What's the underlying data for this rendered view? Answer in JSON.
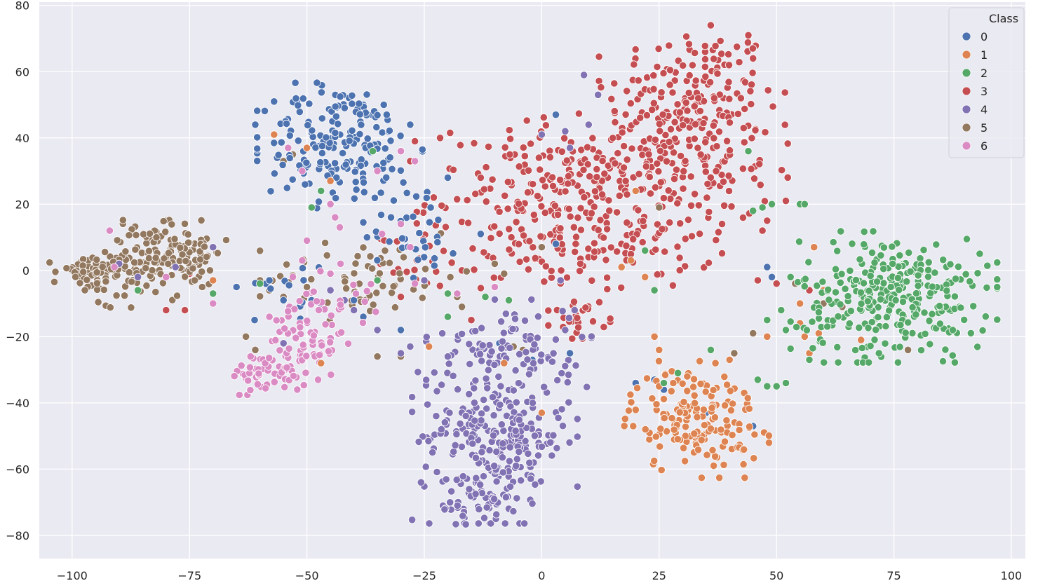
{
  "chart_data": {
    "type": "scatter",
    "title": "",
    "xlabel": "",
    "ylabel": "",
    "xlim": [
      -107,
      103
    ],
    "ylim": [
      -87,
      81
    ],
    "xticks": [
      -100,
      -75,
      -50,
      -25,
      0,
      25,
      50,
      75,
      100
    ],
    "yticks": [
      -80,
      -60,
      -40,
      -20,
      0,
      20,
      40,
      60,
      80
    ],
    "grid": true,
    "legend": {
      "title": "Class",
      "placement": "top-right"
    },
    "series": [
      {
        "name": "0",
        "color": "#4c72b0",
        "clusters": [
          {
            "cx": -43,
            "cy": 38,
            "sx": 8,
            "sy": 9,
            "n": 180
          },
          {
            "cx": -27,
            "cy": 14,
            "sx": 5,
            "sy": 8,
            "n": 35
          },
          {
            "cx": -53,
            "cy": -4,
            "sx": 4,
            "sy": 5,
            "n": 12
          }
        ],
        "points": [
          [
            -61,
            44
          ],
          [
            -57,
            51
          ],
          [
            -33,
            47
          ],
          [
            -28,
            44
          ],
          [
            -20,
            28
          ],
          [
            -13,
            11
          ],
          [
            3,
            47
          ],
          [
            6,
            -25
          ],
          [
            3,
            8
          ],
          [
            -9,
            -22
          ],
          [
            20,
            -34
          ],
          [
            24,
            -33
          ],
          [
            26,
            -36
          ],
          [
            35,
            -43
          ],
          [
            48,
            1
          ],
          [
            49,
            -2
          ],
          [
            45,
            -47
          ],
          [
            -65,
            -5
          ],
          [
            -58,
            -3
          ],
          [
            -49,
            -9
          ],
          [
            -2,
            -27
          ],
          [
            -40,
            -9
          ],
          [
            -38,
            -14
          ],
          [
            -30,
            -18
          ],
          [
            -55,
            -9
          ]
        ]
      },
      {
        "name": "1",
        "color": "#dd8452",
        "clusters": [
          {
            "cx": 33,
            "cy": -45,
            "sx": 7,
            "sy": 8,
            "n": 160
          }
        ],
        "points": [
          [
            -57,
            41
          ],
          [
            -50,
            37
          ],
          [
            -45,
            27
          ],
          [
            20,
            24
          ],
          [
            17,
            1
          ],
          [
            19,
            3
          ],
          [
            22,
            -2
          ],
          [
            24,
            -20
          ],
          [
            25,
            -24
          ],
          [
            25,
            -35
          ],
          [
            28,
            -34
          ],
          [
            31,
            -32
          ],
          [
            37,
            -28
          ],
          [
            40,
            -27
          ],
          [
            48,
            -20
          ],
          [
            52,
            -18
          ],
          [
            55,
            -16
          ],
          [
            57,
            -25
          ],
          [
            56,
            -20
          ],
          [
            59,
            -19
          ],
          [
            68,
            -21
          ],
          [
            60,
            -6
          ],
          [
            58,
            7
          ],
          [
            0,
            -43
          ],
          [
            -8,
            -28
          ],
          [
            -24,
            -23
          ],
          [
            -47,
            -28
          ],
          [
            -70,
            -3
          ],
          [
            55,
            -10
          ]
        ]
      },
      {
        "name": "2",
        "color": "#55a868",
        "clusters": [
          {
            "cx": 75,
            "cy": -8,
            "sx": 10,
            "sy": 9,
            "n": 300
          }
        ],
        "points": [
          [
            -86,
            -6
          ],
          [
            -70,
            -7
          ],
          [
            -60,
            -4
          ],
          [
            -35,
            -3
          ],
          [
            -36,
            36
          ],
          [
            -49,
            19
          ],
          [
            -47,
            24
          ],
          [
            -20,
            -14
          ],
          [
            -20,
            -7
          ],
          [
            -12,
            -8
          ],
          [
            -7,
            -9
          ],
          [
            22,
            6
          ],
          [
            24,
            -6
          ],
          [
            26,
            -34
          ],
          [
            29,
            -31
          ],
          [
            36,
            -24
          ],
          [
            44,
            36
          ],
          [
            45,
            18
          ],
          [
            47,
            19
          ],
          [
            49,
            20
          ],
          [
            55,
            20
          ],
          [
            56,
            20
          ],
          [
            46,
            -33
          ],
          [
            48,
            -35
          ],
          [
            50,
            -35
          ],
          [
            52,
            -34
          ],
          [
            53,
            -2
          ],
          [
            51,
            -12
          ],
          [
            52,
            -18
          ],
          [
            48,
            -15
          ],
          [
            57,
            -27
          ]
        ]
      },
      {
        "name": "3",
        "color": "#c44e52",
        "clusters": [
          {
            "cx": 32,
            "cy": 52,
            "sx": 9,
            "sy": 11,
            "n": 170
          },
          {
            "cx": 26,
            "cy": 30,
            "sx": 12,
            "sy": 10,
            "n": 180
          },
          {
            "cx": 2,
            "cy": 22,
            "sx": 13,
            "sy": 11,
            "n": 190
          },
          {
            "cx": 12,
            "cy": 6,
            "sx": 12,
            "sy": 6,
            "n": 80
          },
          {
            "cx": 8,
            "cy": -14,
            "sx": 3,
            "sy": 3,
            "n": 25
          },
          {
            "cx": -26,
            "cy": 3,
            "sx": 4,
            "sy": 4,
            "n": 18
          }
        ],
        "points": [
          [
            -27,
            39
          ],
          [
            -28,
            33
          ],
          [
            -23,
            22
          ],
          [
            -13,
            28
          ],
          [
            -19,
            5
          ],
          [
            -17,
            0
          ],
          [
            45,
            64
          ],
          [
            44,
            71
          ],
          [
            36,
            74
          ],
          [
            50,
            -4
          ],
          [
            46,
            -3
          ],
          [
            48,
            15
          ],
          [
            47,
            12
          ],
          [
            52,
            21
          ],
          [
            57,
            -6
          ],
          [
            -76,
            -12
          ],
          [
            -80,
            -12
          ],
          [
            -75,
            -1
          ],
          [
            -30,
            -8
          ],
          [
            -15,
            -15
          ]
        ]
      },
      {
        "name": "4",
        "color": "#8172b3",
        "clusters": [
          {
            "cx": -10,
            "cy": -50,
            "sx": 8,
            "sy": 12,
            "n": 270
          },
          {
            "cx": -7,
            "cy": -22,
            "sx": 8,
            "sy": 6,
            "n": 80
          },
          {
            "cx": -13,
            "cy": -70,
            "sx": 5,
            "sy": 5,
            "n": 40
          }
        ],
        "points": [
          [
            -90,
            2
          ],
          [
            -86,
            -2
          ],
          [
            -78,
            1
          ],
          [
            -70,
            7
          ],
          [
            -42,
            -9
          ],
          [
            -40,
            -12
          ],
          [
            -35,
            -18
          ],
          [
            -30,
            -25
          ],
          [
            -28,
            -23
          ],
          [
            -20,
            -26
          ],
          [
            -25,
            -3
          ],
          [
            -47,
            -10
          ],
          [
            -45,
            -6
          ],
          [
            6,
            37
          ],
          [
            5,
            42
          ],
          [
            9,
            59
          ],
          [
            10,
            44
          ],
          [
            12,
            53
          ],
          [
            0,
            41
          ],
          [
            5,
            -18
          ],
          [
            7,
            -12
          ],
          [
            4,
            -3
          ],
          [
            -55,
            -22
          ]
        ]
      },
      {
        "name": "5",
        "color": "#937860",
        "clusters": [
          {
            "cx": -96,
            "cy": -1,
            "sx": 4,
            "sy": 3,
            "n": 70
          },
          {
            "cx": -84,
            "cy": 2,
            "sx": 5,
            "sy": 6,
            "n": 90
          },
          {
            "cx": -76,
            "cy": 6,
            "sx": 4,
            "sy": 5,
            "n": 70
          },
          {
            "cx": -38,
            "cy": -2,
            "sx": 10,
            "sy": 6,
            "n": 60
          }
        ],
        "points": [
          [
            -60,
            -3
          ],
          [
            -63,
            -20
          ],
          [
            -61,
            -24
          ],
          [
            -55,
            -8
          ],
          [
            -58,
            -6
          ],
          [
            -50,
            -5
          ],
          [
            -18,
            -8
          ],
          [
            -17,
            -11
          ],
          [
            -6,
            -23
          ],
          [
            -4,
            -24
          ],
          [
            0,
            7
          ],
          [
            -10,
            2
          ],
          [
            -8,
            -1
          ],
          [
            -53,
            35
          ],
          [
            -55,
            33
          ],
          [
            25,
            19
          ],
          [
            41,
            -25
          ],
          [
            45,
            -19
          ],
          [
            54,
            -4
          ],
          [
            60,
            -10
          ],
          [
            64,
            -11
          ],
          [
            78,
            -24
          ],
          [
            -30,
            -26
          ],
          [
            -35,
            -26
          ]
        ]
      },
      {
        "name": "6",
        "color": "#da8bc3",
        "clusters": [
          {
            "cx": -58,
            "cy": -31,
            "sx": 4,
            "sy": 3,
            "n": 55
          },
          {
            "cx": -50,
            "cy": -22,
            "sx": 4,
            "sy": 5,
            "n": 50
          },
          {
            "cx": -46,
            "cy": -9,
            "sx": 5,
            "sy": 5,
            "n": 30
          }
        ],
        "points": [
          [
            -54,
            37
          ],
          [
            -51,
            30
          ],
          [
            -45,
            20
          ],
          [
            -44,
            16
          ],
          [
            -43,
            13
          ],
          [
            -50,
            9
          ],
          [
            -51,
            3
          ],
          [
            -53,
            -2
          ],
          [
            -45,
            -1
          ],
          [
            -58,
            -14
          ],
          [
            -62,
            -26
          ],
          [
            -30,
            36
          ],
          [
            -27,
            33
          ],
          [
            -27,
            -4
          ],
          [
            -28,
            7
          ],
          [
            -18,
            -7
          ],
          [
            -10,
            -5
          ],
          [
            -30,
            14
          ],
          [
            -34,
            11
          ],
          [
            -92,
            12
          ],
          [
            -91,
            1
          ],
          [
            -80,
            -2
          ],
          [
            -70,
            -10
          ],
          [
            -35,
            30
          ]
        ]
      }
    ]
  }
}
